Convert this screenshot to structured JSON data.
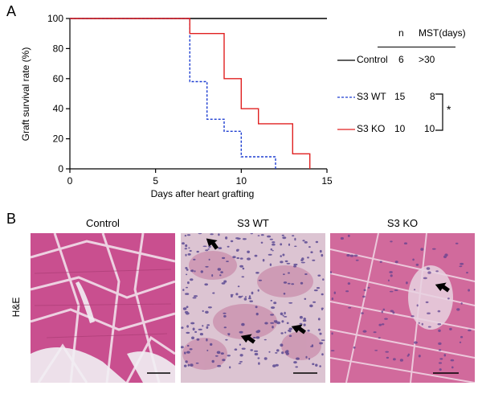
{
  "panel_a": {
    "letter": "A",
    "chart_data": {
      "type": "line",
      "step": true,
      "xlabel": "Days after heart grafting",
      "ylabel": "Graft survival rate (%)",
      "xlim": [
        0,
        15
      ],
      "ylim": [
        0,
        100
      ],
      "xticks": [
        0,
        5,
        10,
        15
      ],
      "yticks": [
        0,
        20,
        40,
        60,
        80,
        100
      ],
      "grid": false,
      "series": [
        {
          "name": "Control",
          "color": "#000000",
          "dash": false,
          "x": [
            0,
            15
          ],
          "y": [
            100,
            100
          ]
        },
        {
          "name": "S3 WT",
          "color": "#1f3fd1",
          "dash": true,
          "x": [
            0,
            7,
            8,
            9,
            10,
            12
          ],
          "y": [
            100,
            58,
            33,
            25,
            8,
            0
          ]
        },
        {
          "name": "S3 KO",
          "color": "#e02020",
          "dash": false,
          "x": [
            0,
            7,
            9,
            10,
            11,
            13,
            14
          ],
          "y": [
            100,
            90,
            60,
            40,
            30,
            10,
            0
          ]
        }
      ]
    },
    "table": {
      "headers": [
        "n",
        "MST(days)"
      ],
      "rows": [
        {
          "label": "Control",
          "n": "6",
          "mst": ">30"
        },
        {
          "label": "S3 WT",
          "n": "15",
          "mst": "8"
        },
        {
          "label": "S3 KO",
          "n": "10",
          "mst": "10"
        }
      ],
      "significance": "*"
    }
  },
  "panel_b": {
    "letter": "B",
    "stain_label": "H&E",
    "images": [
      {
        "title": "Control",
        "arrows": 0
      },
      {
        "title": "S3 WT",
        "arrows": 3
      },
      {
        "title": "S3 KO",
        "arrows": 1
      }
    ]
  }
}
